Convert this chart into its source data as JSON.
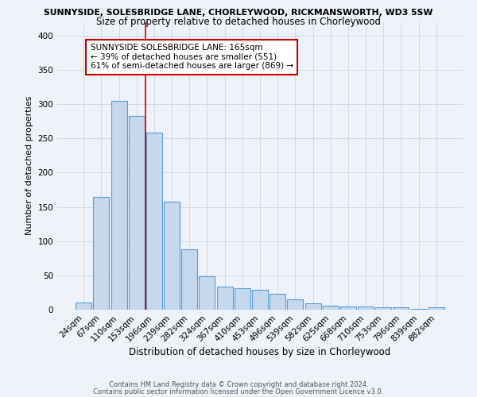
{
  "title1": "SUNNYSIDE, SOLESBRIDGE LANE, CHORLEYWOOD, RICKMANSWORTH, WD3 5SW",
  "title2": "Size of property relative to detached houses in Chorleywood",
  "xlabel": "Distribution of detached houses by size in Chorleywood",
  "ylabel": "Number of detached properties",
  "footer1": "Contains HM Land Registry data © Crown copyright and database right 2024.",
  "footer2": "Contains public sector information licensed under the Open Government Licence v3.0.",
  "categories": [
    "24sqm",
    "67sqm",
    "110sqm",
    "153sqm",
    "196sqm",
    "239sqm",
    "282sqm",
    "324sqm",
    "367sqm",
    "410sqm",
    "453sqm",
    "496sqm",
    "539sqm",
    "582sqm",
    "625sqm",
    "668sqm",
    "710sqm",
    "753sqm",
    "796sqm",
    "839sqm",
    "882sqm"
  ],
  "values": [
    10,
    165,
    305,
    283,
    258,
    158,
    88,
    49,
    34,
    31,
    29,
    23,
    15,
    9,
    6,
    5,
    5,
    4,
    3,
    1,
    4
  ],
  "bar_color": "#c5d8ed",
  "bar_edge_color": "#5a9fd4",
  "grid_color": "#d0d8e8",
  "background_color": "#eef2f8",
  "annotation_line1": "SUNNYSIDE SOLESBRIDGE LANE: 165sqm",
  "annotation_line2": "← 39% of detached houses are smaller (551)",
  "annotation_line3": "61% of semi-detached houses are larger (869) →",
  "red_line_x": 3.5,
  "red_line_color": "#cc0000",
  "annotation_box_color": "#ffffff",
  "annotation_box_edge_color": "#cc0000",
  "ylim": [
    0,
    420
  ],
  "yticks": [
    0,
    50,
    100,
    150,
    200,
    250,
    300,
    350,
    400
  ],
  "title1_fontsize": 7.8,
  "title2_fontsize": 8.5,
  "ylabel_fontsize": 8,
  "xlabel_fontsize": 8.5,
  "tick_fontsize": 7.5,
  "footer_fontsize": 6.0,
  "annotation_fontsize": 7.5
}
